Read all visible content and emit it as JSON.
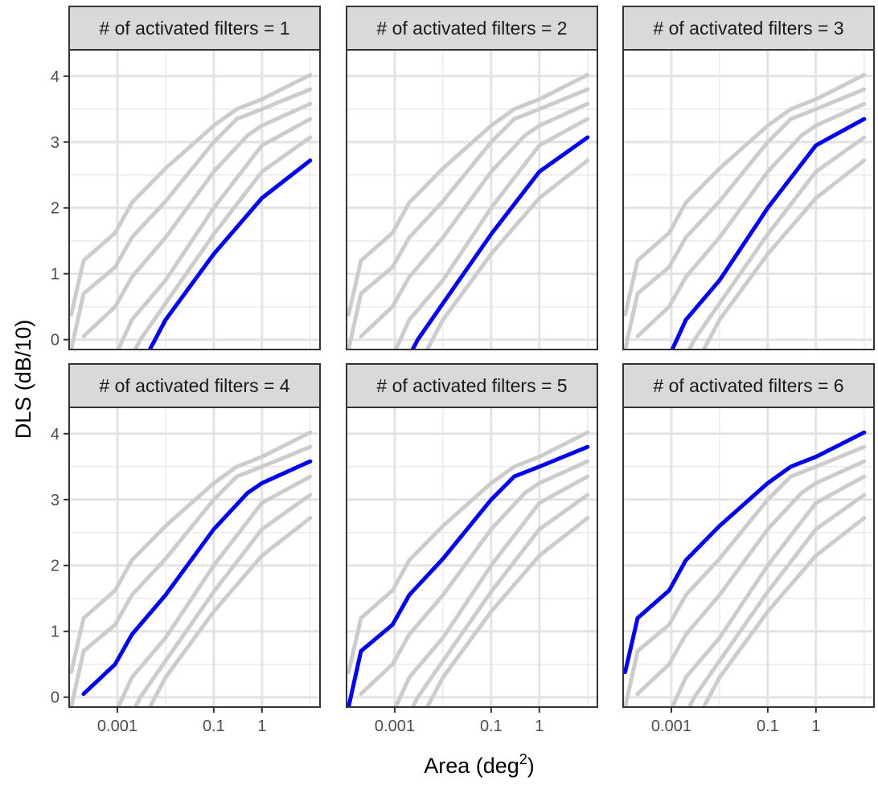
{
  "chart_data": {
    "type": "line",
    "layout": "facet-grid-2x3",
    "xlabel": "Area (deg",
    "xlabel_superscript": "2",
    "xlabel_close": ")",
    "ylabel": "DLS (dB/10)",
    "x_scale": "log10",
    "xlim": [
      0.0001,
      16
    ],
    "ylim": [
      -0.15,
      4.4
    ],
    "x_ticks": [
      {
        "value": 0.001,
        "label": "0.001"
      },
      {
        "value": 0.1,
        "label": "0.1"
      },
      {
        "value": 1,
        "label": "1"
      }
    ],
    "y_ticks": [
      {
        "value": 0,
        "label": "0"
      },
      {
        "value": 1,
        "label": "1"
      },
      {
        "value": 2,
        "label": "2"
      },
      {
        "value": 3,
        "label": "3"
      },
      {
        "value": 4,
        "label": "4"
      }
    ],
    "grid": true,
    "background_line_color": "#cccccc",
    "highlight_color": "#0000ee",
    "strip_fill": "#d9d9d9",
    "series": [
      {
        "activated_filters": 1,
        "points": [
          [
            0.004,
            -0.25
          ],
          [
            0.01,
            0.3
          ],
          [
            0.1,
            1.3
          ],
          [
            1,
            2.15
          ],
          [
            10,
            2.72
          ]
        ]
      },
      {
        "activated_filters": 2,
        "points": [
          [
            0.002,
            -0.25
          ],
          [
            0.003,
            0.0
          ],
          [
            0.01,
            0.55
          ],
          [
            0.1,
            1.6
          ],
          [
            1,
            2.55
          ],
          [
            10,
            3.07
          ]
        ]
      },
      {
        "activated_filters": 3,
        "points": [
          [
            0.0009,
            -0.25
          ],
          [
            0.0013,
            0.0
          ],
          [
            0.002,
            0.3
          ],
          [
            0.01,
            0.9
          ],
          [
            0.1,
            2.0
          ],
          [
            1,
            2.95
          ],
          [
            10,
            3.35
          ]
        ]
      },
      {
        "activated_filters": 4,
        "points": [
          [
            0.0002,
            0.05
          ],
          [
            0.0009,
            0.5
          ],
          [
            0.002,
            0.95
          ],
          [
            0.01,
            1.55
          ],
          [
            0.1,
            2.55
          ],
          [
            0.5,
            3.1
          ],
          [
            1,
            3.25
          ],
          [
            10,
            3.58
          ]
        ]
      },
      {
        "activated_filters": 5,
        "points": [
          [
            0.00011,
            -0.15
          ],
          [
            0.0002,
            0.7
          ],
          [
            0.0009,
            1.1
          ],
          [
            0.002,
            1.55
          ],
          [
            0.01,
            2.1
          ],
          [
            0.1,
            3.0
          ],
          [
            0.3,
            3.35
          ],
          [
            1,
            3.5
          ],
          [
            10,
            3.8
          ]
        ]
      },
      {
        "activated_filters": 6,
        "points": [
          [
            0.00011,
            0.38
          ],
          [
            0.0002,
            1.2
          ],
          [
            0.0009,
            1.62
          ],
          [
            0.002,
            2.08
          ],
          [
            0.01,
            2.6
          ],
          [
            0.1,
            3.25
          ],
          [
            0.3,
            3.5
          ],
          [
            1,
            3.65
          ],
          [
            10,
            4.02
          ]
        ]
      }
    ],
    "panels": [
      {
        "title": "# of activated filters = 1",
        "highlight": 0
      },
      {
        "title": "# of activated filters = 2",
        "highlight": 1
      },
      {
        "title": "# of activated filters = 3",
        "highlight": 2
      },
      {
        "title": "# of activated filters = 4",
        "highlight": 3
      },
      {
        "title": "# of activated filters = 5",
        "highlight": 4
      },
      {
        "title": "# of activated filters = 6",
        "highlight": 5
      }
    ]
  }
}
